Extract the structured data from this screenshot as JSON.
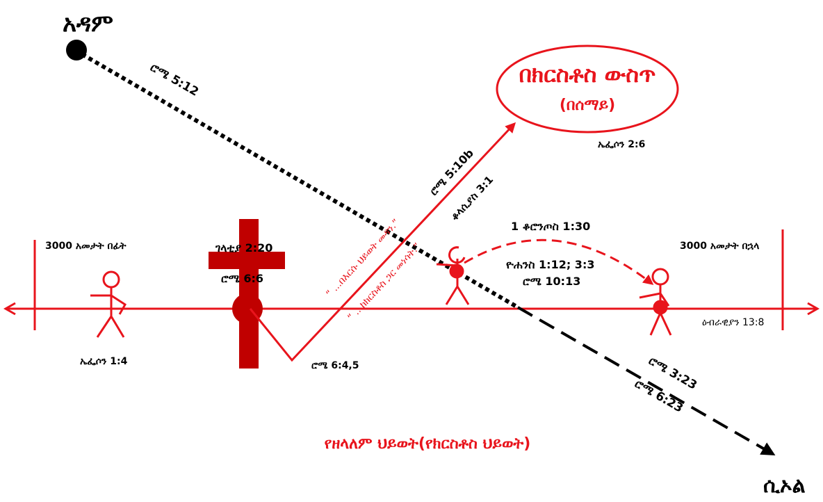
{
  "texts": {
    "adam": "አዳም",
    "rom_5_12": "ሮሜ 5:12",
    "in_christ": "በክርስቶስ ውስጥ",
    "in_heaven": "(በሰማይ)",
    "eph_2_6": "ኤፌሶን 2:6",
    "rom_5_10b": "ሮሜ 5:10b",
    "col_3_1": "ቆላሲያስ 3:1",
    "quote_saved": "“ ...በእርሱ ህይወት መዳን.”",
    "quote_raised": "“ ...ከክርስቶስ ጋር መነሳት.”",
    "cor_1_30": "1 ቆሮንጦስ 1:30",
    "years_before": "3000 አመታት በፊት",
    "years_after": "3000 አመታት በኋላ",
    "gal_2_20": "ገላቲያ 2:20",
    "rom_6_6": "ሮሜ 6:6",
    "john": "ዮሐንስ 1:12; 3:3",
    "rom_10_13": "ሮሜ 10:13",
    "heb_13_8": "ዕብራዊያን 13:8",
    "eph_1_4": "ኤፌሶን 1:4",
    "rom_6_4_5": "ሮሜ 6:4,5",
    "rom_3_23": "ሮሜ 3:23",
    "rom_6_23": "ሮሜ 6:23",
    "eternal_life": "የዘላለም ህይወት(የክርስቶስ ህይወት)",
    "hell": "ሲኦል"
  }
}
